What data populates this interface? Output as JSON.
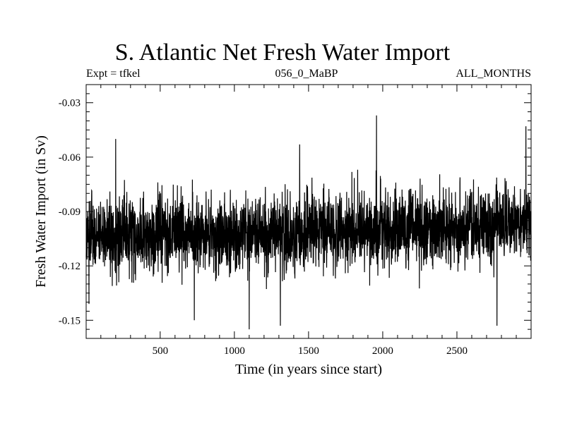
{
  "chart_data": {
    "type": "line",
    "title": "S. Atlantic Net Fresh Water Import",
    "subtitle_left": "Expt = tfkel",
    "subtitle_center": "056_0_MaBP",
    "subtitle_right": "ALL_MONTHS",
    "xlabel": "Time (in years since start)",
    "ylabel": "Fresh Water Import (in Sv)",
    "xlim": [
      1,
      3000
    ],
    "ylim": [
      -0.16,
      -0.02
    ],
    "xticks": [
      500,
      1000,
      1500,
      2000,
      2500
    ],
    "yticks": [
      -0.03,
      -0.06,
      -0.09,
      -0.12,
      -0.15
    ],
    "xtick_labels": [
      "500",
      "1000",
      "1500",
      "2000",
      "2500"
    ],
    "ytick_labels": [
      "-0.03",
      "-0.06",
      "-0.09",
      "-0.12",
      "-0.15"
    ],
    "series": [
      {
        "color": "#000000",
        "trend": {
          "x": [
            1,
            500,
            1000,
            1500,
            2000,
            2500,
            3000
          ],
          "y": [
            -0.104,
            -0.103,
            -0.103,
            -0.102,
            -0.1,
            -0.099,
            -0.096
          ]
        },
        "std": 0.0105,
        "extremes": [
          {
            "x": 1958,
            "y": -0.037
          },
          {
            "x": 2965,
            "y": -0.043
          },
          {
            "x": 200,
            "y": -0.05
          },
          {
            "x": 1440,
            "y": -0.053
          },
          {
            "x": 1100,
            "y": -0.155
          },
          {
            "x": 1310,
            "y": -0.153
          },
          {
            "x": 2770,
            "y": -0.153
          },
          {
            "x": 730,
            "y": -0.15
          },
          {
            "x": 20,
            "y": -0.141
          }
        ]
      }
    ],
    "grid": false,
    "legend": "none"
  }
}
